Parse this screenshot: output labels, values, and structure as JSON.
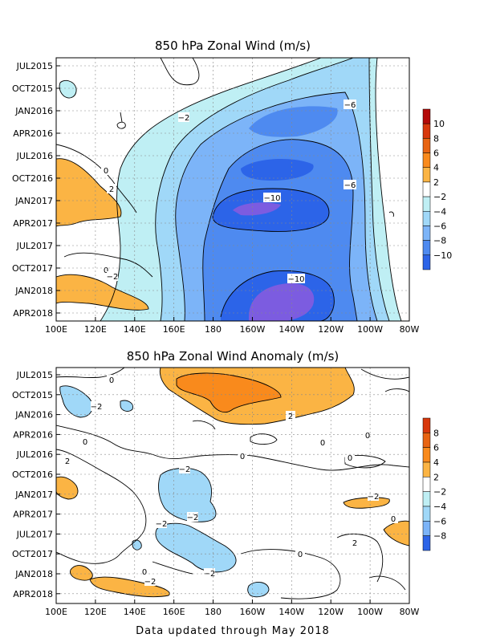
{
  "chart_data": [
    {
      "type": "heatmap",
      "title": "850 hPa Zonal Wind (m/s)",
      "x_ticks": [
        "100E",
        "120E",
        "140E",
        "160E",
        "180",
        "160W",
        "140W",
        "120W",
        "100W",
        "80W"
      ],
      "y_ticks": [
        "JUL2015",
        "OCT2015",
        "JAN2016",
        "APR2016",
        "JUL2016",
        "OCT2016",
        "JAN2017",
        "APR2017",
        "JUL2017",
        "OCT2017",
        "JAN2018",
        "APR2018"
      ],
      "colorbar_labels": [
        "10",
        "8",
        "6",
        "4",
        "2",
        "−2",
        "−4",
        "−6",
        "−8",
        "−10"
      ],
      "contour_labels": [
        "−2",
        "−6",
        "−6",
        "0",
        "2",
        "−10",
        "0",
        "−2",
        "−10"
      ],
      "colors": {
        "pos2": "#fbb444",
        "pos4": "#f98a1c",
        "pos6": "#e86412",
        "pos8": "#d8380c",
        "pos10": "#b40a08",
        "neg2": "#bfeff4",
        "neg4": "#a0d8f8",
        "neg6": "#7cb4f8",
        "neg8": "#4e8af0",
        "neg10": "#2c64e8",
        "neg12": "#7c5ce0"
      }
    },
    {
      "type": "heatmap",
      "title": "850 hPa Zonal Wind Anomaly (m/s)",
      "x_ticks": [
        "100E",
        "120E",
        "140E",
        "160E",
        "180",
        "160W",
        "140W",
        "120W",
        "100W",
        "80W"
      ],
      "y_ticks": [
        "JUL2015",
        "OCT2015",
        "JAN2016",
        "APR2016",
        "JUL2016",
        "OCT2016",
        "JAN2017",
        "APR2017",
        "JUL2017",
        "OCT2017",
        "JAN2018",
        "APR2018"
      ],
      "colorbar_labels": [
        "8",
        "6",
        "4",
        "2",
        "−2",
        "−4",
        "−6",
        "−8"
      ],
      "contour_labels": [
        "0",
        "−2",
        "0",
        "2",
        "0",
        "2",
        "0",
        "−2",
        "−2",
        "−2",
        "0",
        "−2",
        "0",
        "2",
        "0",
        "−2",
        "0",
        "−2",
        "0"
      ]
    }
  ],
  "footer": "Data updated through May 2018"
}
